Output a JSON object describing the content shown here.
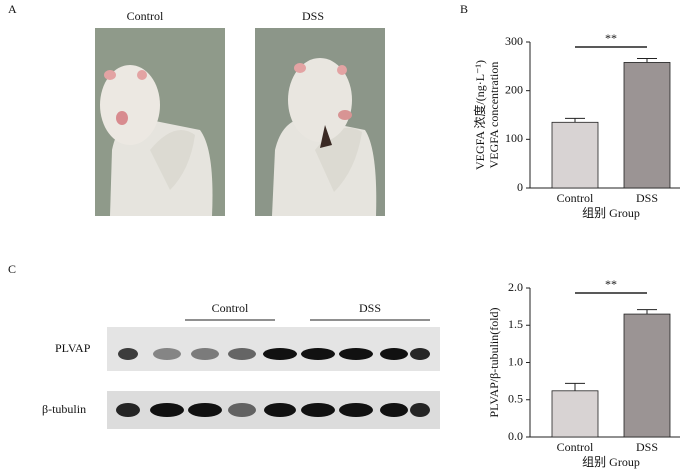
{
  "panels": {
    "a": {
      "label": "A",
      "captions": [
        "Control",
        "DSS"
      ]
    },
    "b": {
      "label": "B"
    },
    "c": {
      "label": "C",
      "blot_groups": [
        "Control",
        "DSS"
      ],
      "blot_rows": [
        "PLVAP",
        "β-tubulin"
      ]
    }
  },
  "chart_data": [
    {
      "type": "bar",
      "categories": [
        "Control",
        "DSS"
      ],
      "values": [
        135,
        258
      ],
      "errors": [
        8,
        8
      ],
      "colors": [
        "#d8d3d3",
        "#9b9494"
      ],
      "ylim": [
        0,
        300
      ],
      "yticks": [
        0,
        100,
        200,
        300
      ],
      "ylabel": [
        "VEGFA 浓度/(ng·L⁻¹)",
        "VEGFA concentration"
      ],
      "xlabel": "组别 Group",
      "annotation": "**"
    },
    {
      "type": "bar",
      "categories": [
        "Control",
        "DSS"
      ],
      "values": [
        0.62,
        1.65
      ],
      "errors": [
        0.1,
        0.06
      ],
      "colors": [
        "#d8d3d3",
        "#9b9494"
      ],
      "ylim": [
        0,
        2.0
      ],
      "yticks": [
        {
          "value": 0,
          "label": "0.0"
        },
        {
          "value": 0.5,
          "label": "0.5"
        },
        {
          "value": 1,
          "label": "1.0"
        },
        {
          "value": 1.5,
          "label": "1.5"
        },
        {
          "value": 2,
          "label": "2.0"
        }
      ],
      "ylabel": [
        "PLVAP/β-tubulin(fold)"
      ],
      "xlabel": "组别 Group",
      "annotation": "**"
    }
  ]
}
